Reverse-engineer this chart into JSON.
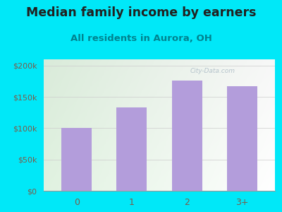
{
  "title": "Median family income by earners",
  "subtitle": "All residents in Aurora, OH",
  "categories": [
    "0",
    "1",
    "2",
    "3+"
  ],
  "values": [
    101000,
    133000,
    176000,
    167000
  ],
  "bar_color": "#b39ddb",
  "background_outer": "#00e8f8",
  "title_color": "#212121",
  "subtitle_color": "#00838f",
  "tick_label_color": "#7b5c4a",
  "ytick_labels": [
    "$0",
    "$50k",
    "$100k",
    "$150k",
    "$200k"
  ],
  "ytick_values": [
    0,
    50000,
    100000,
    150000,
    200000
  ],
  "ylim": [
    0,
    210000
  ],
  "title_fontsize": 12.5,
  "subtitle_fontsize": 9.5
}
